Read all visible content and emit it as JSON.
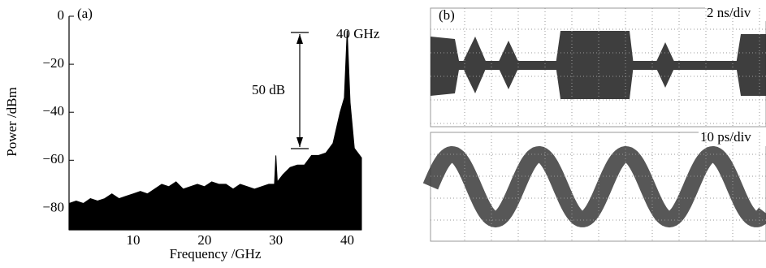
{
  "chart_data": [
    {
      "type": "area",
      "label": "(a)",
      "x_label": "Frequency /GHz",
      "y_label": "Power /dBm",
      "annotations": [
        "40 GHz",
        "50 dB"
      ],
      "color": "#000000",
      "x": [
        1,
        2,
        3,
        4,
        5,
        6,
        7,
        8,
        9,
        10,
        11,
        12,
        13,
        14,
        15,
        16,
        17,
        18,
        19,
        20,
        21,
        22,
        23,
        24,
        25,
        26,
        27,
        28,
        29,
        29.8,
        30,
        30.2,
        31,
        32,
        33,
        34,
        35,
        36,
        37,
        38,
        39,
        39.6,
        40,
        40.4,
        41,
        42
      ],
      "values": [
        -78,
        -77,
        -78,
        -76,
        -77,
        -76,
        -74,
        -76,
        -75,
        -74,
        -73,
        -74,
        -72,
        -70,
        -71,
        -69,
        -72,
        -71,
        -70,
        -71,
        -69,
        -70,
        -70,
        -72,
        -70,
        -71,
        -72,
        -71,
        -70,
        -70,
        -58,
        -69,
        -66,
        -63,
        -62,
        -62,
        -58,
        -58,
        -57,
        -53,
        -40,
        -34,
        -6,
        -36,
        -55,
        -59
      ],
      "xlim": [
        1,
        42
      ],
      "ylim": [
        -89,
        0
      ],
      "xticks": [
        10,
        20,
        30,
        40
      ],
      "yticks": [
        0,
        {
          "value": -20,
          "label": "−20"
        },
        {
          "value": -40,
          "label": "−40"
        },
        {
          "value": -60,
          "label": "−60"
        },
        {
          "value": -80,
          "label": "−80"
        }
      ]
    },
    {
      "type": "image",
      "label": "(b)",
      "annotations": [
        "2 ns/div",
        "10 ps/div"
      ]
    }
  ]
}
